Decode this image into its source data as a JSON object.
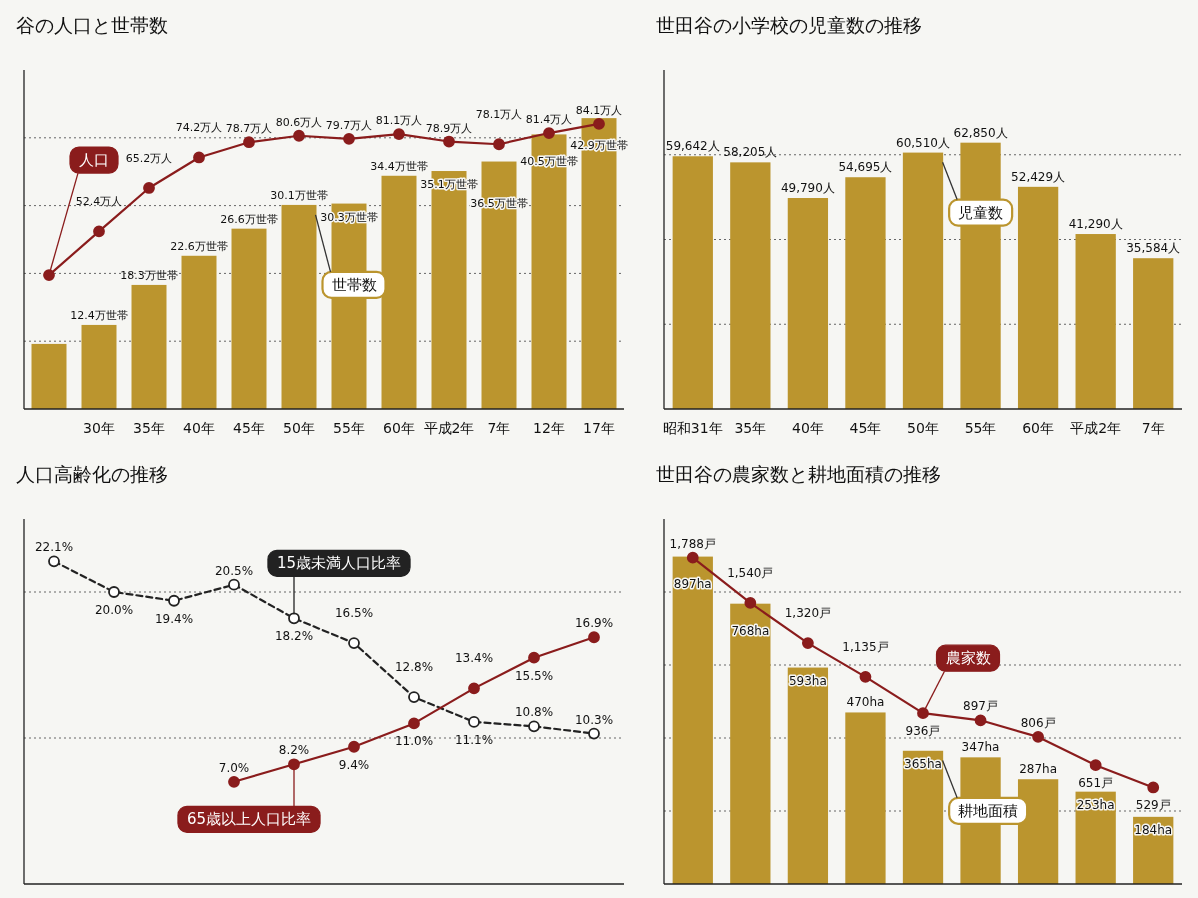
{
  "chart_data": [
    {
      "type": "bar",
      "title": "谷の人口と世帯数",
      "categories": [
        null,
        "30年",
        "35年",
        "40年",
        "45年",
        "50年",
        "55年",
        "60年",
        "平成2年",
        "7年",
        "12年",
        "17年"
      ],
      "series": [
        {
          "name": "世帯数",
          "color": "#bb952e",
          "values": [
            9.6,
            12.4,
            18.3,
            22.6,
            26.6,
            30.1,
            30.3,
            34.4,
            35.1,
            36.5,
            40.5,
            42.9
          ],
          "value_labels": [
            null,
            "12.4万世帯",
            "18.3万世帯",
            "22.6万世帯",
            "26.6万世帯",
            "30.1万世帯",
            "30.3万世帯",
            "34.4万世帯",
            "35.1万世帯",
            "36.5万世帯",
            "40.5万世帯",
            "42.9万世帯"
          ]
        },
        {
          "name": "人口",
          "type": "line",
          "axis": "y2",
          "color": "#8a1c1c",
          "marker": "circle",
          "values": [
            39.5,
            52.4,
            65.2,
            74.2,
            78.7,
            80.6,
            79.7,
            81.1,
            78.9,
            78.1,
            81.4,
            84.1
          ],
          "value_labels": [
            null,
            "52.4万人",
            "65.2万人",
            "74.2万人",
            "78.7万人",
            "80.6万人",
            "79.7万人",
            "81.1万人",
            "78.9万人",
            "78.1万人",
            "81.4万人",
            "84.1万人"
          ]
        }
      ],
      "ylim": [
        0,
        50
      ],
      "y2lim": [
        0,
        100
      ],
      "y2ticks": [
        {
          "value": 20,
          "label": null
        },
        {
          "value": 40,
          "label": null
        },
        {
          "value": 60,
          "label": null
        },
        {
          "value": 80,
          "label": null
        }
      ],
      "grid": true
    },
    {
      "type": "bar",
      "title": "世田谷の小学校の児童数の推移",
      "categories": [
        "昭和31年",
        "35年",
        "40年",
        "45年",
        "50年",
        "55年",
        "60年",
        "平成2年",
        "7年"
      ],
      "series": [
        {
          "name": "児童数",
          "color": "#bb952e",
          "values": [
            59642,
            58205,
            49790,
            54695,
            60510,
            62850,
            52429,
            41290,
            35584
          ],
          "value_labels": [
            "59,642人",
            "58,205人",
            "49,790人",
            "54,695人",
            "60,510人",
            "62,850人",
            "52,429人",
            "41,290人",
            "35,584人"
          ]
        }
      ],
      "ylim": [
        0,
        80000
      ],
      "yticks": [
        {
          "value": 20000,
          "label": null
        },
        {
          "value": 40000,
          "label": null
        },
        {
          "value": 60000,
          "label": null
        }
      ],
      "grid": "y"
    },
    {
      "type": "line",
      "title": "人口高齢化の推移",
      "categories": [
        null,
        null,
        null,
        null,
        null,
        null,
        null,
        null,
        null,
        null
      ],
      "series": [
        {
          "name": "15歳未満人口比率",
          "color": "#222222",
          "line_style": "dashed",
          "marker": "circle",
          "values": [
            22.1,
            20.0,
            19.4,
            20.5,
            18.2,
            16.5,
            12.8,
            11.1,
            10.8,
            10.3
          ],
          "value_labels": [
            "22.1%",
            "20.0%",
            "19.4%",
            "20.5%",
            "18.2%",
            "16.5%",
            "12.8%",
            "11.1%",
            "10.8%",
            "10.3%"
          ]
        },
        {
          "name": "65歳以上人口比率",
          "color": "#8a1c1c",
          "marker": "circle",
          "values": [
            null,
            null,
            null,
            7.0,
            8.2,
            9.4,
            11.0,
            13.4,
            15.5,
            16.9
          ],
          "value_labels": [
            null,
            null,
            null,
            "7.0%",
            "8.2%",
            "9.4%",
            "11.0%",
            "13.4%",
            "15.5%",
            "16.9%"
          ]
        }
      ],
      "ylim": [
        0,
        25
      ],
      "yticks": [
        {
          "value": 10,
          "label": null
        },
        {
          "value": 20,
          "label": null
        }
      ],
      "grid": "y"
    },
    {
      "type": "bar",
      "title": "世田谷の農家数と耕地面積の推移",
      "categories": [
        null,
        null,
        null,
        null,
        null,
        null,
        null,
        null,
        null
      ],
      "series": [
        {
          "name": "耕地面積",
          "color": "#bb952e",
          "values": [
            897,
            768,
            593,
            470,
            365,
            347,
            287,
            253,
            184
          ],
          "value_labels": [
            "897ha",
            "768ha",
            "593ha",
            "470ha",
            "365ha",
            "347ha",
            "287ha",
            "253ha",
            "184ha"
          ]
        },
        {
          "name": "農家数",
          "type": "line",
          "axis": "y2",
          "color": "#8a1c1c",
          "marker": "circle",
          "values": [
            1788,
            1540,
            1320,
            1135,
            936,
            897,
            806,
            651,
            529
          ],
          "value_labels": [
            "1,788戸",
            "1,540戸",
            "1,320戸",
            "1,135戸",
            "936戸",
            "897戸",
            "806戸",
            "651戸",
            "529戸"
          ]
        }
      ],
      "ylim": [
        0,
        1000
      ],
      "y2lim": [
        0,
        2000
      ],
      "y2ticks": [
        {
          "value": 400,
          "label": null
        },
        {
          "value": 800,
          "label": null
        },
        {
          "value": 1200,
          "label": null
        },
        {
          "value": 1600,
          "label": null
        }
      ],
      "grid": true
    }
  ]
}
